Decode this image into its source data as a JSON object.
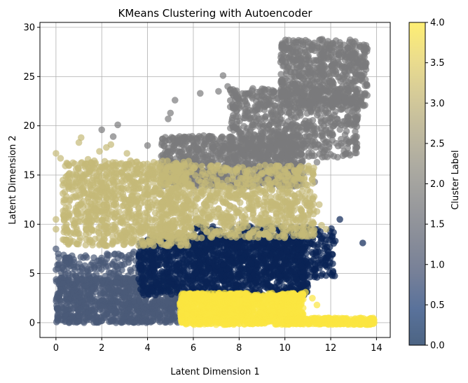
{
  "chart_data": {
    "type": "scatter",
    "title": "KMeans Clustering with Autoencoder",
    "xlabel": "Latent Dimension 1",
    "ylabel": "Latent Dimension 2",
    "xlim": [
      -0.7,
      14.6
    ],
    "ylim": [
      -1.5,
      30.5
    ],
    "xticks": [
      0,
      2,
      4,
      6,
      8,
      10,
      12,
      14
    ],
    "yticks": [
      0,
      5,
      10,
      15,
      20,
      25,
      30
    ],
    "grid": true,
    "point_alpha": 0.7,
    "colorbar": {
      "label": "Cluster Label",
      "range": [
        0.0,
        4.0
      ],
      "ticks": [
        "0.0",
        "0.5",
        "1.0",
        "1.5",
        "2.0",
        "2.5",
        "3.0",
        "3.5",
        "4.0"
      ],
      "colormap": "cividis",
      "color_stops": [
        "#00224e",
        "#123570",
        "#3b496c",
        "#575d6d",
        "#707173",
        "#8a8779",
        "#a69d75",
        "#c4b56c",
        "#e4cf5b",
        "#fde737"
      ]
    },
    "clusters": [
      {
        "label": 0,
        "color": "#4a5a78",
        "regions": [
          {
            "x": [
              0.0,
              5.4
            ],
            "y": [
              0.0,
              4.6
            ],
            "n": 900
          },
          {
            "x": [
              0.0,
              5.0
            ],
            "y": [
              4.0,
              7.0
            ],
            "n": 200
          }
        ],
        "points": [
          [
            0.0,
            7.5
          ],
          [
            0.4,
            6.3
          ],
          [
            0.7,
            6.8
          ],
          [
            1.2,
            6.6
          ],
          [
            3.4,
            7.2
          ],
          [
            0.1,
            7.0
          ]
        ]
      },
      {
        "label": 1,
        "color": "#0a2356",
        "regions": [
          {
            "x": [
              3.6,
              11.0
            ],
            "y": [
              2.8,
              8.8
            ],
            "n": 1200
          },
          {
            "x": [
              6.0,
              12.2
            ],
            "y": [
              4.5,
              9.8
            ],
            "n": 500
          }
        ],
        "points": [
          [
            12.4,
            10.5
          ],
          [
            13.4,
            8.1
          ],
          [
            11.2,
            5.4
          ],
          [
            11.9,
            6.9
          ],
          [
            11.4,
            4.6
          ],
          [
            12.2,
            8.3
          ]
        ]
      },
      {
        "label": 2,
        "color": "#7a7a7c",
        "regions": [
          {
            "x": [
              4.6,
              10.8
            ],
            "y": [
              13.8,
              19.0
            ],
            "n": 900
          },
          {
            "x": [
              7.6,
              13.2
            ],
            "y": [
              16.8,
              23.8
            ],
            "n": 700
          },
          {
            "x": [
              9.8,
              13.6
            ],
            "y": [
              22.0,
              28.8
            ],
            "n": 600
          }
        ],
        "points": [
          [
            2.0,
            19.6
          ],
          [
            2.5,
            18.9
          ],
          [
            2.7,
            20.1
          ],
          [
            4.0,
            18.0
          ],
          [
            4.9,
            20.7
          ],
          [
            5.2,
            22.6
          ],
          [
            5.0,
            21.3
          ],
          [
            6.3,
            23.3
          ],
          [
            7.1,
            23.5
          ],
          [
            7.3,
            25.1
          ],
          [
            7.5,
            24.0
          ],
          [
            8.0,
            22.5
          ],
          [
            8.4,
            21.3
          ],
          [
            9.0,
            23.1
          ],
          [
            10.8,
            15.2
          ],
          [
            11.4,
            16.3
          ],
          [
            11.7,
            20.0
          ],
          [
            11.9,
            21.3
          ],
          [
            11.3,
            14.3
          ],
          [
            10.6,
            14.5
          ]
        ]
      },
      {
        "label": 3,
        "color": "#c4b978",
        "regions": [
          {
            "x": [
              0.3,
              5.8
            ],
            "y": [
              7.8,
              16.5
            ],
            "n": 900
          },
          {
            "x": [
              4.5,
              11.3
            ],
            "y": [
              8.6,
              16.0
            ],
            "n": 800
          }
        ],
        "points": [
          [
            0.0,
            17.2
          ],
          [
            0.2,
            16.7
          ],
          [
            0.6,
            14.7
          ],
          [
            1.1,
            18.8
          ],
          [
            1.0,
            18.3
          ],
          [
            1.4,
            16.6
          ],
          [
            1.9,
            17.4
          ],
          [
            2.2,
            17.8
          ],
          [
            2.4,
            18.1
          ],
          [
            3.1,
            17.2
          ],
          [
            0.0,
            10.5
          ],
          [
            0.0,
            9.5
          ],
          [
            11.4,
            11.3
          ],
          [
            11.5,
            12.0
          ],
          [
            11.6,
            9.9
          ],
          [
            11.8,
            9.5
          ]
        ]
      },
      {
        "label": 4,
        "color": "#fbe640",
        "regions": [
          {
            "x": [
              5.4,
              10.8
            ],
            "y": [
              -0.2,
              3.0
            ],
            "n": 1200
          },
          {
            "x": [
              10.0,
              13.9
            ],
            "y": [
              -0.2,
              0.5
            ],
            "n": 300
          }
        ],
        "points": [
          [
            11.2,
            2.5
          ],
          [
            11.4,
            1.8
          ],
          [
            10.9,
            3.1
          ],
          [
            13.9,
            0.0
          ],
          [
            13.6,
            0.1
          ]
        ]
      }
    ]
  }
}
